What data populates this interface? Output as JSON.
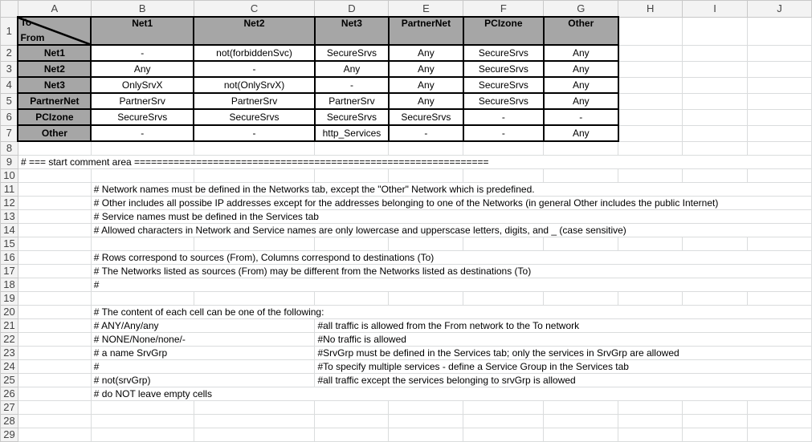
{
  "column_headers": [
    "A",
    "B",
    "C",
    "D",
    "E",
    "F",
    "G",
    "H",
    "I",
    "J"
  ],
  "row_headers": [
    "1",
    "2",
    "3",
    "4",
    "5",
    "6",
    "7",
    "8",
    "9",
    "10",
    "11",
    "12",
    "13",
    "14",
    "15",
    "16",
    "17",
    "18",
    "19",
    "20",
    "21",
    "22",
    "23",
    "24",
    "25",
    "26",
    "27",
    "28",
    "29"
  ],
  "matrix": {
    "corner_to": "To",
    "corner_from": "From",
    "destinations": [
      "Net1",
      "Net2",
      "Net3",
      "PartnerNet",
      "PCIzone",
      "Other"
    ],
    "sources": [
      {
        "name": "Net1",
        "cells": [
          "-",
          "not(forbiddenSvc)",
          "SecureSrvs",
          "Any",
          "SecureSrvs",
          "Any"
        ]
      },
      {
        "name": "Net2",
        "cells": [
          "Any",
          "-",
          "Any",
          "Any",
          "SecureSrvs",
          "Any"
        ]
      },
      {
        "name": "Net3",
        "cells": [
          "OnlySrvX",
          "not(OnlySrvX)",
          "-",
          "Any",
          "SecureSrvs",
          "Any"
        ]
      },
      {
        "name": "PartnerNet",
        "cells": [
          "PartnerSrv",
          "PartnerSrv",
          "PartnerSrv",
          "Any",
          "SecureSrvs",
          "Any"
        ]
      },
      {
        "name": "PCIzone",
        "cells": [
          "SecureSrvs",
          "SecureSrvs",
          "SecureSrvs",
          "SecureSrvs",
          "-",
          "-"
        ]
      },
      {
        "name": "Other",
        "cells": [
          "-",
          "-",
          "http_Services",
          "-",
          "-",
          "Any"
        ]
      }
    ],
    "header_fill": "#a6a6a6"
  },
  "comments": [
    {
      "row": 9,
      "col": "A",
      "text": "# === start comment area ==============================================================="
    },
    {
      "row": 11,
      "col": "B",
      "text": "# Network names must be defined in the Networks tab, except the \"Other\" Network which is predefined."
    },
    {
      "row": 12,
      "col": "B",
      "text": "# Other includes all possibe IP addresses except for the addresses belonging to one of the Networks (in general Other includes the public Internet)"
    },
    {
      "row": 13,
      "col": "B",
      "text": "# Service names must be defined in the Services tab"
    },
    {
      "row": 14,
      "col": "B",
      "text": "# Allowed characters in Network and Service names are only lowercase and upperscase letters, digits, and _   (case sensitive)"
    },
    {
      "row": 16,
      "col": "B",
      "text": "# Rows correspond to sources (From), Columns correspond to destinations (To)"
    },
    {
      "row": 17,
      "col": "B",
      "text": "# The Networks listed as sources (From) may be different from the Networks listed as destinations (To)"
    },
    {
      "row": 18,
      "col": "B",
      "text": "#"
    },
    {
      "row": 20,
      "col": "B",
      "text": "# The content of each cell can be one of the following:"
    },
    {
      "row": 21,
      "col": "B",
      "text": "#  ANY/Any/any"
    },
    {
      "row": 21,
      "col": "D",
      "text": "#all traffic is allowed from the From network to the To network"
    },
    {
      "row": 22,
      "col": "B",
      "text": "#  NONE/None/none/-"
    },
    {
      "row": 22,
      "col": "D",
      "text": "#No traffic is allowed"
    },
    {
      "row": 23,
      "col": "B",
      "text": "#  a name SrvGrp"
    },
    {
      "row": 23,
      "col": "D",
      "text": "#SrvGrp must be defined in the Services tab; only the services in SrvGrp are allowed"
    },
    {
      "row": 24,
      "col": "B",
      "text": "#"
    },
    {
      "row": 24,
      "col": "D",
      "text": "#To specify multiple services - define a Service Group in the Services tab"
    },
    {
      "row": 25,
      "col": "B",
      "text": "# not(srvGrp)"
    },
    {
      "row": 25,
      "col": "D",
      "text": "#all traffic except the services belonging to srvGrp is allowed"
    },
    {
      "row": 26,
      "col": "B",
      "text": "# do NOT leave empty cells"
    }
  ]
}
